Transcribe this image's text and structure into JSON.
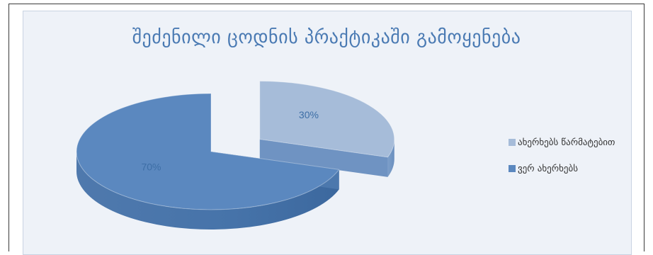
{
  "chart_data": {
    "type": "pie",
    "title": "შეძენილი ცოდნის პრაქტიკაში გამოყენება",
    "slices": [
      {
        "label": "ახერხებს წარმატებით",
        "value": 30,
        "data_label": "30%",
        "color": "#a6bcd9",
        "exploded": true
      },
      {
        "label": "ვერ ახერხებს",
        "value": 70,
        "data_label": "70%",
        "color": "#5b88bf",
        "exploded": false
      }
    ],
    "style": "3d",
    "legend": "right"
  }
}
